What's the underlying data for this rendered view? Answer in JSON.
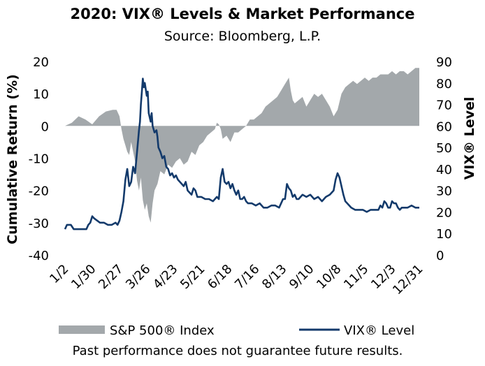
{
  "chart_data": {
    "type": "area+line",
    "title": "2020: VIX® Levels & Market Performance",
    "subtitle": "Source: Bloomberg, L.P.",
    "ylabel_left": "Cumulative Return (%)",
    "ylabel_right": "VIX® Level",
    "ylim_left": [
      -40,
      20
    ],
    "ylim_right": [
      0,
      90
    ],
    "yticks_left": [
      "20",
      "10",
      "0",
      "-10",
      "-20",
      "-30",
      "-40"
    ],
    "yticks_right": [
      "90",
      "80",
      "70",
      "60",
      "50",
      "40",
      "30",
      "20",
      "10",
      "0"
    ],
    "x_tick_labels": [
      "1/2",
      "1/30",
      "2/27",
      "3/26",
      "4/23",
      "5/21",
      "6/18",
      "7/16",
      "8/13",
      "9/10",
      "10/8",
      "11/5",
      "12/3",
      "12/31"
    ],
    "x_range_days": [
      0,
      364
    ],
    "series": [
      {
        "name": "S&P 500® Index",
        "kind": "area",
        "axis": "left",
        "color": "#a3a8ab",
        "points": [
          [
            0,
            0
          ],
          [
            7,
            1
          ],
          [
            14,
            3
          ],
          [
            21,
            2
          ],
          [
            28,
            0.5
          ],
          [
            35,
            3
          ],
          [
            42,
            4.5
          ],
          [
            49,
            5
          ],
          [
            53,
            5
          ],
          [
            56,
            3
          ],
          [
            58,
            -1
          ],
          [
            60,
            -4
          ],
          [
            62,
            -6
          ],
          [
            64,
            -8
          ],
          [
            66,
            -9
          ],
          [
            68,
            -5
          ],
          [
            70,
            -8
          ],
          [
            72,
            -11
          ],
          [
            74,
            -17
          ],
          [
            76,
            -20
          ],
          [
            78,
            -16
          ],
          [
            80,
            -23
          ],
          [
            82,
            -26
          ],
          [
            84,
            -24
          ],
          [
            86,
            -28
          ],
          [
            88,
            -30
          ],
          [
            90,
            -24
          ],
          [
            92,
            -20
          ],
          [
            95,
            -18
          ],
          [
            98,
            -14
          ],
          [
            102,
            -15
          ],
          [
            106,
            -12
          ],
          [
            110,
            -13
          ],
          [
            114,
            -11
          ],
          [
            118,
            -10
          ],
          [
            122,
            -12
          ],
          [
            126,
            -11
          ],
          [
            130,
            -8
          ],
          [
            134,
            -9
          ],
          [
            138,
            -6
          ],
          [
            142,
            -5
          ],
          [
            146,
            -3
          ],
          [
            150,
            -2
          ],
          [
            154,
            -1
          ],
          [
            156,
            1
          ],
          [
            158,
            0.5
          ],
          [
            160,
            -1
          ],
          [
            162,
            -4
          ],
          [
            166,
            -3
          ],
          [
            170,
            -5
          ],
          [
            174,
            -2
          ],
          [
            178,
            -2
          ],
          [
            182,
            -1
          ],
          [
            186,
            0
          ],
          [
            190,
            2
          ],
          [
            194,
            2
          ],
          [
            198,
            3
          ],
          [
            202,
            4
          ],
          [
            206,
            6
          ],
          [
            210,
            7
          ],
          [
            214,
            8
          ],
          [
            218,
            9
          ],
          [
            222,
            11
          ],
          [
            226,
            13
          ],
          [
            230,
            15
          ],
          [
            232,
            11
          ],
          [
            234,
            8
          ],
          [
            236,
            7
          ],
          [
            240,
            8
          ],
          [
            244,
            9
          ],
          [
            248,
            6
          ],
          [
            252,
            8
          ],
          [
            256,
            10
          ],
          [
            260,
            9
          ],
          [
            264,
            10
          ],
          [
            268,
            8
          ],
          [
            272,
            6
          ],
          [
            276,
            3
          ],
          [
            280,
            5
          ],
          [
            284,
            10
          ],
          [
            288,
            12
          ],
          [
            292,
            13
          ],
          [
            296,
            14
          ],
          [
            300,
            13
          ],
          [
            304,
            14
          ],
          [
            308,
            15
          ],
          [
            312,
            14
          ],
          [
            316,
            15
          ],
          [
            320,
            15
          ],
          [
            324,
            16
          ],
          [
            328,
            16
          ],
          [
            332,
            16
          ],
          [
            336,
            17
          ],
          [
            340,
            16
          ],
          [
            344,
            17
          ],
          [
            348,
            17
          ],
          [
            352,
            16
          ],
          [
            356,
            17
          ],
          [
            360,
            18
          ],
          [
            364,
            18
          ]
        ]
      },
      {
        "name": "VIX® Level",
        "kind": "line",
        "axis": "right",
        "color": "#133a6b",
        "points": [
          [
            0,
            12
          ],
          [
            2,
            14
          ],
          [
            6,
            14
          ],
          [
            9,
            12
          ],
          [
            14,
            12
          ],
          [
            18,
            12
          ],
          [
            22,
            12
          ],
          [
            24,
            14
          ],
          [
            26,
            15
          ],
          [
            28,
            18
          ],
          [
            30,
            17
          ],
          [
            33,
            16
          ],
          [
            36,
            15
          ],
          [
            40,
            15
          ],
          [
            44,
            14
          ],
          [
            48,
            14
          ],
          [
            52,
            15
          ],
          [
            54,
            14
          ],
          [
            56,
            16
          ],
          [
            58,
            20
          ],
          [
            60,
            25
          ],
          [
            62,
            35
          ],
          [
            64,
            40
          ],
          [
            66,
            32
          ],
          [
            68,
            34
          ],
          [
            70,
            41
          ],
          [
            72,
            38
          ],
          [
            74,
            48
          ],
          [
            76,
            58
          ],
          [
            77,
            62
          ],
          [
            78,
            70
          ],
          [
            79,
            76
          ],
          [
            80,
            82
          ],
          [
            81,
            78
          ],
          [
            82,
            80
          ],
          [
            84,
            74
          ],
          [
            85,
            76
          ],
          [
            86,
            66
          ],
          [
            87,
            64
          ],
          [
            88,
            62
          ],
          [
            89,
            66
          ],
          [
            90,
            60
          ],
          [
            92,
            57
          ],
          [
            94,
            58
          ],
          [
            95,
            55
          ],
          [
            96,
            50
          ],
          [
            98,
            48
          ],
          [
            100,
            45
          ],
          [
            102,
            46
          ],
          [
            104,
            41
          ],
          [
            106,
            40
          ],
          [
            108,
            37
          ],
          [
            110,
            38
          ],
          [
            112,
            36
          ],
          [
            114,
            37
          ],
          [
            116,
            35
          ],
          [
            118,
            34
          ],
          [
            120,
            33
          ],
          [
            122,
            32
          ],
          [
            124,
            34
          ],
          [
            126,
            30
          ],
          [
            128,
            29
          ],
          [
            130,
            28
          ],
          [
            132,
            31
          ],
          [
            134,
            30
          ],
          [
            136,
            27
          ],
          [
            140,
            27
          ],
          [
            144,
            26
          ],
          [
            148,
            26
          ],
          [
            152,
            25
          ],
          [
            156,
            27
          ],
          [
            158,
            26
          ],
          [
            160,
            36
          ],
          [
            162,
            40
          ],
          [
            164,
            34
          ],
          [
            166,
            33
          ],
          [
            168,
            34
          ],
          [
            170,
            31
          ],
          [
            172,
            33
          ],
          [
            174,
            30
          ],
          [
            176,
            28
          ],
          [
            178,
            30
          ],
          [
            180,
            26
          ],
          [
            182,
            26
          ],
          [
            184,
            27
          ],
          [
            186,
            25
          ],
          [
            188,
            24
          ],
          [
            190,
            24
          ],
          [
            192,
            24
          ],
          [
            196,
            23
          ],
          [
            200,
            24
          ],
          [
            204,
            22
          ],
          [
            208,
            22
          ],
          [
            212,
            23
          ],
          [
            216,
            23
          ],
          [
            220,
            22
          ],
          [
            224,
            26
          ],
          [
            226,
            26
          ],
          [
            228,
            33
          ],
          [
            230,
            31
          ],
          [
            232,
            30
          ],
          [
            234,
            27
          ],
          [
            236,
            28
          ],
          [
            238,
            26
          ],
          [
            240,
            26
          ],
          [
            244,
            28
          ],
          [
            248,
            27
          ],
          [
            252,
            28
          ],
          [
            256,
            26
          ],
          [
            260,
            27
          ],
          [
            264,
            25
          ],
          [
            268,
            27
          ],
          [
            272,
            28
          ],
          [
            276,
            30
          ],
          [
            278,
            35
          ],
          [
            280,
            38
          ],
          [
            282,
            36
          ],
          [
            284,
            32
          ],
          [
            286,
            28
          ],
          [
            288,
            25
          ],
          [
            290,
            24
          ],
          [
            294,
            22
          ],
          [
            298,
            21
          ],
          [
            302,
            21
          ],
          [
            306,
            21
          ],
          [
            310,
            20
          ],
          [
            314,
            21
          ],
          [
            318,
            21
          ],
          [
            322,
            21
          ],
          [
            324,
            23
          ],
          [
            326,
            22
          ],
          [
            328,
            25
          ],
          [
            330,
            24
          ],
          [
            332,
            22
          ],
          [
            334,
            22
          ],
          [
            336,
            25
          ],
          [
            338,
            24
          ],
          [
            340,
            24
          ],
          [
            342,
            22
          ],
          [
            344,
            21
          ],
          [
            346,
            22
          ],
          [
            348,
            22
          ],
          [
            352,
            22
          ],
          [
            356,
            23
          ],
          [
            360,
            22
          ],
          [
            364,
            22
          ]
        ]
      }
    ],
    "legend": [
      {
        "label": "S&P 500® Index",
        "kind": "area"
      },
      {
        "label": "VIX® Level",
        "kind": "line"
      }
    ],
    "legend_position": "bottom",
    "footnote": "Past performance does not guarantee future results."
  }
}
